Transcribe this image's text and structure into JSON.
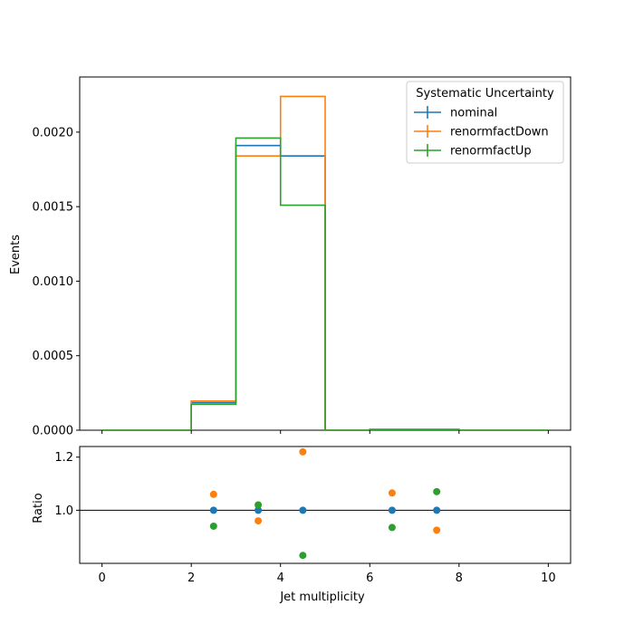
{
  "chart_data": {
    "type": "step-histogram-with-ratio",
    "xlabel": "Jet multiplicity",
    "ylabel": "Events",
    "ratio_ylabel": "Ratio",
    "xlim": [
      -0.5,
      10.5
    ],
    "ylim": [
      0,
      0.00237
    ],
    "ratio_ylim": [
      0.8,
      1.24
    ],
    "x_ticks": [
      0,
      2,
      4,
      6,
      8,
      10
    ],
    "y_ticks": [
      0,
      0.0005,
      0.001,
      0.0015,
      0.002
    ],
    "y_tick_labels": [
      "0.0000",
      "0.0005",
      "0.0010",
      "0.0015",
      "0.0020"
    ],
    "ratio_y_ticks": [
      1.0,
      1.2
    ],
    "ratio_y_tick_labels": [
      "1.0",
      "1.2"
    ],
    "legend": {
      "title": "Systematic Uncertainty",
      "placement": "top-right"
    },
    "bin_edges": [
      0,
      1,
      2,
      3,
      4,
      5,
      6,
      7,
      8,
      9,
      10
    ],
    "series": [
      {
        "name": "nominal",
        "color": "#1f77b4",
        "values": [
          0,
          0,
          0.000185,
          0.00191,
          0.00184,
          0,
          5e-06,
          5e-06,
          0,
          0
        ],
        "ratio": [
          null,
          null,
          1.0,
          1.0,
          1.0,
          null,
          1.0,
          1.0,
          null,
          null
        ]
      },
      {
        "name": "renormfactDown",
        "color": "#ff7f0e",
        "values": [
          0,
          0,
          0.000196,
          0.00184,
          0.00224,
          0,
          5e-06,
          5e-06,
          0,
          0
        ],
        "ratio": [
          null,
          null,
          1.06,
          0.96,
          1.22,
          null,
          1.065,
          0.925,
          null,
          null
        ]
      },
      {
        "name": "renormfactUp",
        "color": "#2ca02c",
        "values": [
          0,
          0,
          0.000174,
          0.00196,
          0.00151,
          0,
          5e-06,
          5e-06,
          0,
          0
        ],
        "ratio": [
          null,
          null,
          0.94,
          1.02,
          0.83,
          null,
          0.935,
          1.07,
          null,
          null
        ]
      }
    ],
    "ratio_reference_line": 1.0,
    "grid": false
  }
}
